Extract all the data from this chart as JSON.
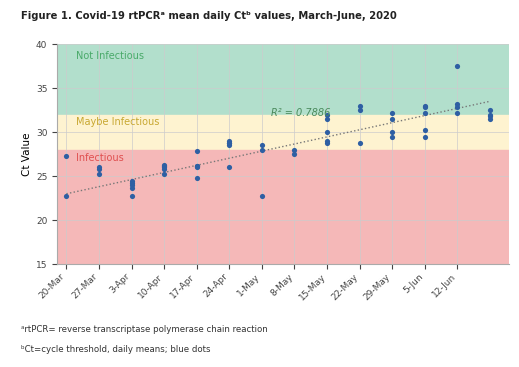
{
  "title": "Figure 1. Covid-19 rtPCRᵃ mean daily Ctᵇ values, March-June, 2020",
  "ylabel": "Ct Value",
  "ylim": [
    15,
    40
  ],
  "yticks": [
    15,
    20,
    25,
    30,
    35,
    40
  ],
  "bg_color": "#ffffff",
  "zone_not_infectious_color": "#b2dfcc",
  "zone_maybe_color": "#fef3d0",
  "zone_infectious_color": "#f5b8b8",
  "zone_not_infectious_ymin": 32,
  "zone_maybe_ymin": 28,
  "zone_infectious_ymax": 28,
  "label_not_infectious": "Not Infectious",
  "label_maybe": "Maybe Infectious",
  "label_infectious": "Infectious",
  "label_not_infectious_color": "#4aaa6a",
  "label_maybe_color": "#c8a832",
  "label_infectious_color": "#e05050",
  "r2_text": "R² = 0.7886",
  "r2_color": "#4a8a5c",
  "dot_color": "#2e5fa3",
  "trend_color": "#777777",
  "footnote1": "ᵃrtPCR= reverse transcriptase polymerase chain reaction",
  "footnote2": "ᵇCt=cycle threshold, daily means; blue dots",
  "data_points": [
    [
      0,
      22.8
    ],
    [
      0,
      27.3
    ],
    [
      7,
      25.8
    ],
    [
      7,
      25.2
    ],
    [
      7,
      26.0
    ],
    [
      14,
      24.2
    ],
    [
      14,
      23.6
    ],
    [
      14,
      24.5
    ],
    [
      14,
      24.0
    ],
    [
      14,
      22.8
    ],
    [
      21,
      26.2
    ],
    [
      21,
      26.0
    ],
    [
      21,
      25.8
    ],
    [
      21,
      26.3
    ],
    [
      21,
      25.2
    ],
    [
      28,
      27.8
    ],
    [
      28,
      24.8
    ],
    [
      28,
      26.2
    ],
    [
      28,
      26.0
    ],
    [
      28,
      26.1
    ],
    [
      35,
      28.8
    ],
    [
      35,
      26.0
    ],
    [
      35,
      29.0
    ],
    [
      35,
      28.5
    ],
    [
      35,
      28.8
    ],
    [
      42,
      22.8
    ],
    [
      42,
      28.0
    ],
    [
      42,
      28.5
    ],
    [
      49,
      28.0
    ],
    [
      49,
      27.5
    ],
    [
      56,
      32.0
    ],
    [
      56,
      30.0
    ],
    [
      56,
      28.8
    ],
    [
      56,
      31.5
    ],
    [
      56,
      29.0
    ],
    [
      63,
      33.0
    ],
    [
      63,
      32.5
    ],
    [
      63,
      28.8
    ],
    [
      70,
      32.2
    ],
    [
      70,
      31.5
    ],
    [
      70,
      30.0
    ],
    [
      70,
      29.5
    ],
    [
      77,
      33.0
    ],
    [
      77,
      32.8
    ],
    [
      77,
      32.2
    ],
    [
      77,
      30.2
    ],
    [
      77,
      29.5
    ],
    [
      84,
      37.5
    ],
    [
      84,
      33.2
    ],
    [
      84,
      32.8
    ],
    [
      84,
      32.2
    ],
    [
      91,
      32.5
    ],
    [
      91,
      32.0
    ],
    [
      91,
      31.8
    ],
    [
      91,
      31.5
    ]
  ],
  "trend_x_start": 0,
  "trend_x_end": 91,
  "trend_y_start": 23.0,
  "trend_y_end": 33.5,
  "xtick_days": [
    0,
    7,
    14,
    21,
    28,
    35,
    42,
    49,
    56,
    63,
    70,
    77,
    84,
    91
  ],
  "xtick_labels": [
    "20-Mar",
    "27-Mar",
    "3-Apr",
    "10-Apr",
    "17-Apr",
    "24-Apr",
    "1-May",
    "8-May",
    "15-May",
    "22-May",
    "29-May",
    "5-Jun",
    "12-Jun",
    ""
  ],
  "grid_color": "#cccccc",
  "axis_color": "#aaaaaa",
  "xlim": [
    -2,
    95
  ]
}
